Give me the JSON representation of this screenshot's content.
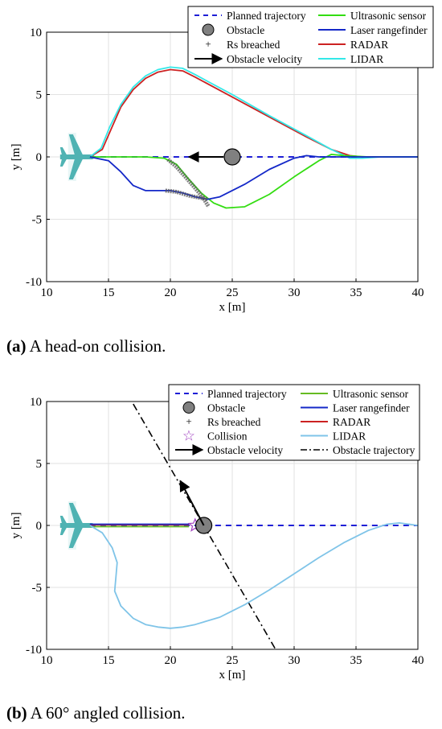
{
  "chart_data": [
    {
      "type": "line",
      "id": "a",
      "xlabel": "x [m]",
      "ylabel": "y [m]",
      "xlim": [
        10,
        40
      ],
      "ylim": [
        -10,
        10
      ],
      "xticks": [
        10,
        15,
        20,
        25,
        30,
        35,
        40
      ],
      "yticks": [
        -10,
        -5,
        0,
        5,
        10
      ],
      "grid": true,
      "legend_position": "top-right",
      "legend": [
        {
          "label": "Planned trajectory",
          "color": "#1f1fd6",
          "style": "dashed"
        },
        {
          "label": "Ultrasonic sensor",
          "color": "#33dd11",
          "style": "solid"
        },
        {
          "label": "Obstacle",
          "color": "#808080",
          "style": "circle"
        },
        {
          "label": "Laser rangefinder",
          "color": "#1428c8",
          "style": "solid"
        },
        {
          "label": "Rs breached",
          "color": "#333333",
          "style": "plus"
        },
        {
          "label": "RADAR",
          "color": "#cc2222",
          "style": "solid"
        },
        {
          "label": "Obstacle velocity",
          "color": "#000000",
          "style": "arrow"
        },
        {
          "label": "LIDAR",
          "color": "#33e8e8",
          "style": "solid"
        }
      ],
      "aircraft": {
        "x": 12,
        "y": 0,
        "color": "#4fb3b3"
      },
      "obstacle": {
        "x": 25,
        "y": 0
      },
      "velocity": {
        "from": [
          24.3,
          0
        ],
        "to": [
          21.5,
          0
        ]
      },
      "series": [
        {
          "name": "Planned trajectory",
          "color": "#1f1fd6",
          "dash": "7,6",
          "width": 2,
          "x": [
            13.5,
            40
          ],
          "y": [
            0,
            0
          ]
        },
        {
          "name": "RADAR",
          "color": "#cc2222",
          "width": 1.8,
          "x": [
            13.5,
            14.5,
            15.2,
            16,
            17,
            18,
            19,
            20,
            21,
            22,
            25,
            28,
            31,
            33,
            34.5,
            35.5,
            37,
            40
          ],
          "y": [
            0,
            0.6,
            2.2,
            4,
            5.4,
            6.3,
            6.8,
            7.0,
            6.9,
            6.4,
            4.8,
            3.2,
            1.6,
            0.6,
            0.1,
            0,
            0,
            0
          ]
        },
        {
          "name": "LIDAR",
          "color": "#33e8e8",
          "width": 1.8,
          "x": [
            13.5,
            14.4,
            15.1,
            16,
            17,
            18,
            19,
            20,
            21,
            22,
            25,
            28,
            31,
            33,
            34.5,
            35.5,
            37,
            40
          ],
          "y": [
            0,
            0.7,
            2.4,
            4.2,
            5.6,
            6.5,
            7.0,
            7.2,
            7.1,
            6.6,
            5.0,
            3.3,
            1.7,
            0.6,
            -0.1,
            -0.1,
            0,
            0
          ]
        },
        {
          "name": "Ultrasonic sensor",
          "color": "#33dd11",
          "width": 1.8,
          "x": [
            13.5,
            18,
            19.5,
            20.5,
            21.5,
            22.5,
            23.5,
            24.5,
            26,
            28,
            30,
            32,
            33,
            34,
            36,
            40
          ],
          "y": [
            0,
            0,
            -0.1,
            -0.6,
            -1.8,
            -2.9,
            -3.7,
            -4.1,
            -4.0,
            -3.0,
            -1.6,
            -0.3,
            0.2,
            0.1,
            0,
            0
          ]
        },
        {
          "name": "Laser rangefinder",
          "color": "#1428c8",
          "width": 1.8,
          "x": [
            13.5,
            15,
            16,
            17,
            18,
            19,
            20,
            21,
            22,
            23,
            24,
            26,
            28,
            30,
            31,
            32,
            33,
            35,
            37,
            40
          ],
          "y": [
            0,
            -0.3,
            -1.2,
            -2.3,
            -2.7,
            -2.7,
            -2.7,
            -2.9,
            -3.2,
            -3.4,
            -3.2,
            -2.2,
            -1.0,
            -0.1,
            0.1,
            0,
            0,
            0,
            0,
            0
          ]
        }
      ],
      "breach_segments": [
        {
          "x": [
            19.8,
            20.5,
            21.3,
            22,
            22.6,
            23.1
          ],
          "y": [
            -0.2,
            -0.8,
            -1.7,
            -2.5,
            -3.2,
            -4.0
          ]
        },
        {
          "x": [
            19.6,
            20.5,
            21.5,
            22.5,
            23.0
          ],
          "y": [
            -2.7,
            -2.8,
            -3.1,
            -3.3,
            -3.4
          ]
        }
      ]
    },
    {
      "type": "line",
      "id": "b",
      "xlabel": "x [m]",
      "ylabel": "y [m]",
      "xlim": [
        10,
        40
      ],
      "ylim": [
        -10,
        10
      ],
      "xticks": [
        10,
        15,
        20,
        25,
        30,
        35,
        40
      ],
      "yticks": [
        -10,
        -5,
        0,
        5,
        10
      ],
      "grid": true,
      "legend_position": "top-right",
      "legend": [
        {
          "label": "Planned trajectory",
          "color": "#1f1fd6",
          "style": "dashed"
        },
        {
          "label": "Ultrasonic sensor",
          "color": "#66bb22",
          "style": "solid"
        },
        {
          "label": "Obstacle",
          "color": "#808080",
          "style": "circle"
        },
        {
          "label": "Laser rangefinder",
          "color": "#1428c8",
          "style": "solid"
        },
        {
          "label": "Rs breached",
          "color": "#333333",
          "style": "plus"
        },
        {
          "label": "RADAR",
          "color": "#cc2222",
          "style": "solid"
        },
        {
          "label": "Collision",
          "color": "#a040c0",
          "style": "star"
        },
        {
          "label": "LIDAR",
          "color": "#7fc4e8",
          "style": "solid"
        },
        {
          "label": "Obstacle velocity",
          "color": "#000000",
          "style": "arrow"
        },
        {
          "label": "Obstacle trajectory",
          "color": "#000000",
          "style": "dashdot"
        }
      ],
      "aircraft": {
        "x": 12,
        "y": 0,
        "color": "#4fb3b3"
      },
      "obstacle": {
        "x": 22.7,
        "y": 0
      },
      "collision": {
        "x": 22.0,
        "y": 0
      },
      "velocity": {
        "from": [
          22.7,
          0
        ],
        "to": [
          20.8,
          3.6
        ]
      },
      "obstacle_trajectory": {
        "x": [
          17.0,
          28.5
        ],
        "y": [
          9.8,
          -10
        ]
      },
      "series": [
        {
          "name": "Planned trajectory",
          "color": "#1f1fd6",
          "dash": "7,6",
          "width": 2,
          "x": [
            13.5,
            40
          ],
          "y": [
            0,
            0
          ]
        },
        {
          "name": "Ultrasonic sensor",
          "color": "#66bb22",
          "width": 1.8,
          "x": [
            13.5,
            21.5
          ],
          "y": [
            -0.1,
            -0.1
          ]
        },
        {
          "name": "RADAR",
          "color": "#cc2222",
          "width": 1.8,
          "x": [
            13.5,
            21.5
          ],
          "y": [
            0.05,
            0.05
          ]
        },
        {
          "name": "Laser rangefinder",
          "color": "#1428c8",
          "width": 1.8,
          "x": [
            13.5,
            21.5
          ],
          "y": [
            0.1,
            0.1
          ]
        },
        {
          "name": "LIDAR",
          "color": "#7fc4e8",
          "width": 1.8,
          "x": [
            13.5,
            14.5,
            15.3,
            15.7,
            15.6,
            15.5,
            16,
            17,
            18,
            19,
            20,
            21,
            22,
            24,
            26,
            28,
            30,
            32,
            34,
            36,
            37.5,
            38.5,
            39.3,
            40
          ],
          "y": [
            0,
            -0.6,
            -1.8,
            -3.0,
            -4.2,
            -5.3,
            -6.5,
            -7.5,
            -8.0,
            -8.2,
            -8.3,
            -8.2,
            -8.0,
            -7.4,
            -6.4,
            -5.2,
            -3.9,
            -2.6,
            -1.4,
            -0.4,
            0.1,
            0.2,
            0.1,
            0
          ]
        }
      ]
    }
  ],
  "captions": {
    "a_letter": "(a)",
    "a_text": " A head-on collision.",
    "b_letter": "(b)",
    "b_text": " A 60° angled collision."
  }
}
